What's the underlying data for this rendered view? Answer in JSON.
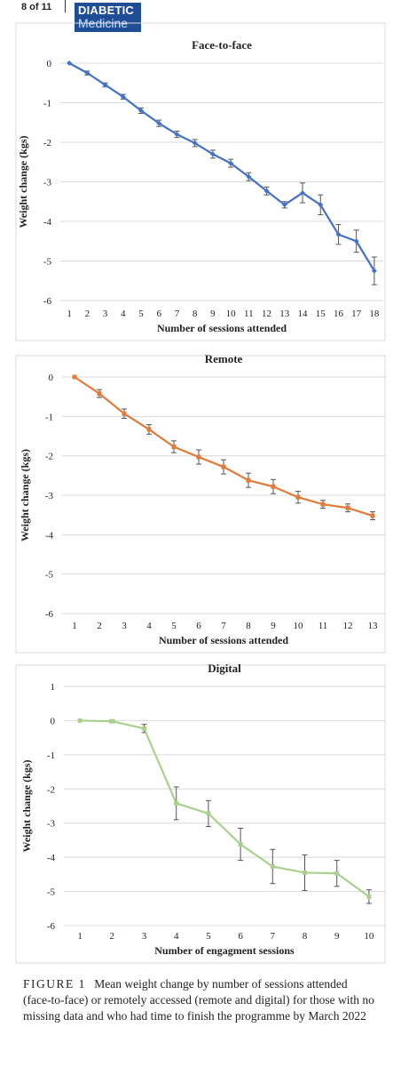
{
  "header": {
    "page_label": "8 of 11",
    "logo_line1": "DIABETIC",
    "logo_line2": "Medicine"
  },
  "caption": {
    "label": "FIGURE 1",
    "text": "Mean weight change by number of sessions attended (face-to-face) or remotely accessed (remote and digital) for those with no missing data and who had time to finish the programme by March 2022"
  },
  "chart_data": [
    {
      "type": "line",
      "title": "Face-to-face",
      "xlabel": "Number of sessions attended",
      "ylabel": "Weight change (kgs)",
      "color": "#4472c4",
      "marker": "diamond",
      "ylim": [
        -6,
        0
      ],
      "yticks": [
        0,
        -1,
        -2,
        -3,
        -4,
        -5,
        -6
      ],
      "categories": [
        "1",
        "2",
        "3",
        "4",
        "5",
        "6",
        "7",
        "8",
        "9",
        "10",
        "11",
        "12",
        "13",
        "14",
        "15",
        "16",
        "17",
        "18"
      ],
      "values": [
        0,
        -0.25,
        -0.55,
        -0.85,
        -1.2,
        -1.52,
        -1.8,
        -2.02,
        -2.3,
        -2.53,
        -2.87,
        -3.23,
        -3.58,
        -3.28,
        -3.58,
        -4.33,
        -4.5,
        -5.25
      ],
      "errors": [
        0,
        0.05,
        0.05,
        0.06,
        0.07,
        0.08,
        0.08,
        0.09,
        0.1,
        0.1,
        0.1,
        0.1,
        0.08,
        0.25,
        0.25,
        0.25,
        0.28,
        0.35
      ]
    },
    {
      "type": "line",
      "title": "Remote",
      "xlabel": "Number of sessions attended",
      "ylabel": "Weight change (kgs)",
      "color": "#e07b39",
      "marker": "square",
      "ylim": [
        -6,
        0
      ],
      "yticks": [
        0,
        -1,
        -2,
        -3,
        -4,
        -5,
        -6
      ],
      "categories": [
        "1",
        "2",
        "3",
        "4",
        "5",
        "6",
        "7",
        "8",
        "9",
        "10",
        "11",
        "12",
        "13"
      ],
      "values": [
        0,
        -0.42,
        -0.93,
        -1.33,
        -1.77,
        -2.03,
        -2.28,
        -2.62,
        -2.78,
        -3.05,
        -3.23,
        -3.32,
        -3.52
      ],
      "errors": [
        0,
        0.1,
        0.12,
        0.12,
        0.15,
        0.18,
        0.18,
        0.18,
        0.18,
        0.15,
        0.1,
        0.1,
        0.1
      ]
    },
    {
      "type": "line",
      "title": "Digital",
      "xlabel": "Number of engagment sessions",
      "ylabel": "Weight change (kgs)",
      "color": "#a9d18e",
      "marker": "square",
      "ylim": [
        -6,
        1
      ],
      "yticks": [
        1,
        0,
        -1,
        -2,
        -3,
        -4,
        -5,
        -6
      ],
      "categories": [
        "1",
        "2",
        "3",
        "4",
        "5",
        "6",
        "7",
        "8",
        "9",
        "10"
      ],
      "values": [
        0,
        -0.02,
        -0.23,
        -2.42,
        -2.72,
        -3.62,
        -4.27,
        -4.45,
        -4.47,
        -5.15
      ],
      "errors": [
        0,
        0.04,
        0.12,
        0.48,
        0.38,
        0.47,
        0.5,
        0.52,
        0.38,
        0.2
      ]
    }
  ]
}
